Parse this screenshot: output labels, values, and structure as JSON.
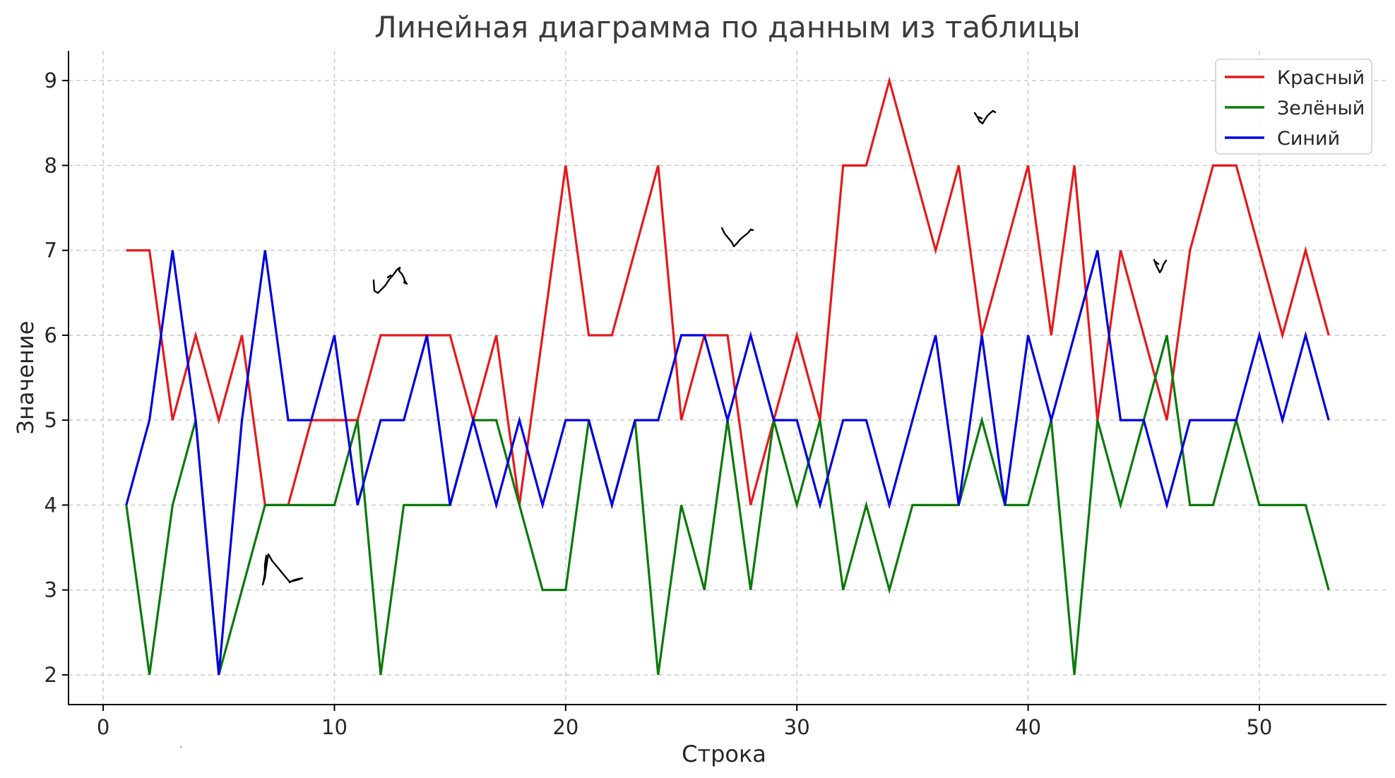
{
  "chart_data": {
    "type": "line",
    "title": "Линейная диаграмма по данным из таблицы",
    "xlabel": "Строка",
    "ylabel": "Значение",
    "xlim": [
      -1.5,
      55.5
    ],
    "ylim": [
      1.65,
      9.35
    ],
    "xticks": [
      0,
      10,
      20,
      30,
      40,
      50
    ],
    "yticks": [
      2,
      3,
      4,
      5,
      6,
      7,
      8,
      9
    ],
    "grid": true,
    "legend_position": "top-right",
    "x": [
      1,
      2,
      3,
      4,
      5,
      6,
      7,
      8,
      9,
      10,
      11,
      12,
      13,
      14,
      15,
      16,
      17,
      18,
      19,
      20,
      21,
      22,
      23,
      24,
      25,
      26,
      27,
      28,
      29,
      30,
      31,
      32,
      33,
      34,
      35,
      36,
      37,
      38,
      39,
      40,
      41,
      42,
      43,
      44,
      45,
      46,
      47,
      48,
      49,
      50,
      51,
      52,
      53
    ],
    "series": [
      {
        "name": "Красный",
        "color": "#e41a1c",
        "values": [
          7,
          7,
          5,
          6,
          5,
          6,
          4,
          4,
          5,
          5,
          5,
          6,
          6,
          6,
          6,
          5,
          6,
          4,
          6,
          8,
          6,
          6,
          7,
          8,
          5,
          6,
          6,
          4,
          5,
          6,
          5,
          8,
          8,
          9,
          8,
          7,
          8,
          6,
          7,
          8,
          6,
          8,
          5,
          7,
          6,
          5,
          7,
          8,
          8,
          7,
          6,
          7,
          6
        ]
      },
      {
        "name": "Зелёный",
        "color": "#0a7a0a",
        "values": [
          4,
          2,
          4,
          5,
          2,
          3,
          4,
          4,
          4,
          4,
          5,
          2,
          4,
          4,
          4,
          5,
          5,
          4,
          3,
          3,
          5,
          4,
          5,
          2,
          4,
          3,
          5,
          3,
          5,
          4,
          5,
          3,
          4,
          3,
          4,
          4,
          4,
          5,
          4,
          4,
          5,
          2,
          5,
          4,
          5,
          6,
          4,
          4,
          5,
          4,
          4,
          4,
          3
        ]
      },
      {
        "name": "Синий",
        "color": "#0000e0",
        "values": [
          4,
          5,
          7,
          5,
          2,
          5,
          7,
          5,
          5,
          6,
          4,
          5,
          5,
          6,
          4,
          5,
          4,
          5,
          4,
          5,
          5,
          4,
          5,
          5,
          6,
          6,
          5,
          6,
          5,
          5,
          4,
          5,
          5,
          4,
          5,
          6,
          4,
          6,
          4,
          6,
          5,
          6,
          7,
          5,
          5,
          4,
          5,
          5,
          5,
          6,
          5,
          6,
          5
        ]
      }
    ]
  }
}
